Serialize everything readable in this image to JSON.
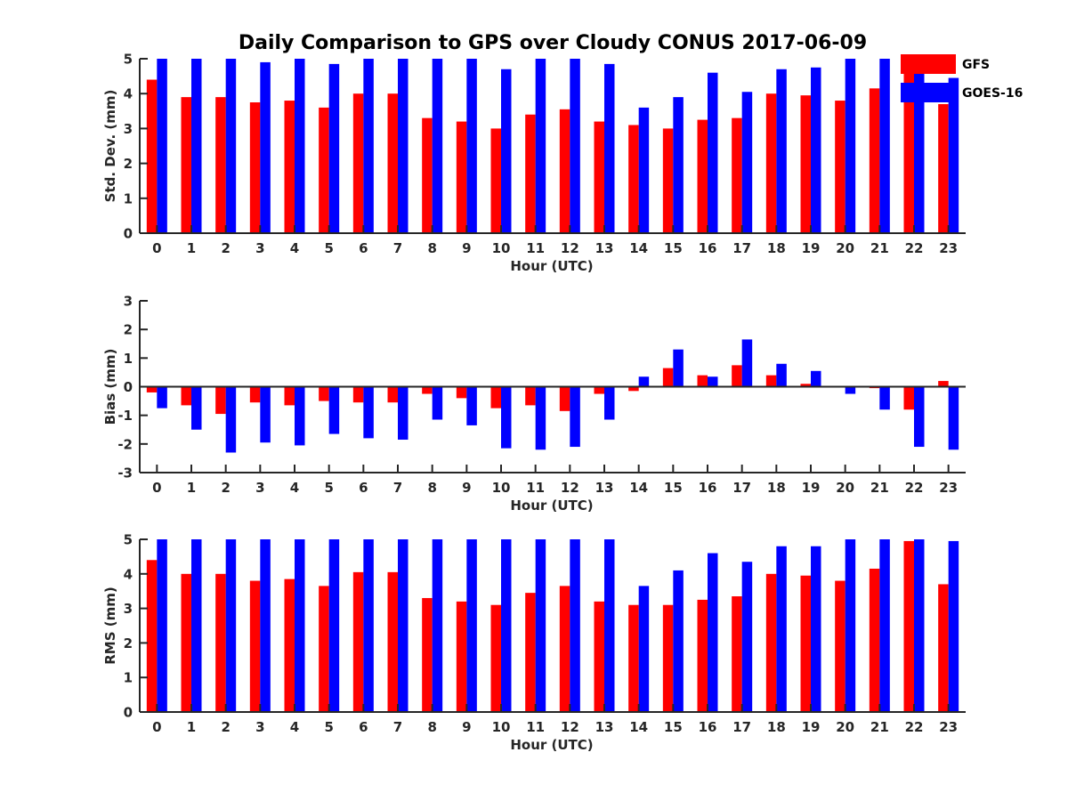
{
  "title": "Daily Comparison to GPS over Cloudy CONUS 2017-06-09",
  "legend": {
    "position": "top-right",
    "entries": [
      {
        "label": "GFS",
        "color": "#ff0000"
      },
      {
        "label": "GOES-16",
        "color": "#0000ff"
      }
    ]
  },
  "chart_data": [
    {
      "type": "bar",
      "ylabel": "Std. Dev. (mm)",
      "xlabel": "Hour (UTC)",
      "ylim": [
        0,
        5
      ],
      "yticks": [
        0,
        1,
        2,
        3,
        4,
        5
      ],
      "categories": [
        "0",
        "1",
        "2",
        "3",
        "4",
        "5",
        "6",
        "7",
        "8",
        "9",
        "10",
        "11",
        "12",
        "13",
        "14",
        "15",
        "16",
        "17",
        "18",
        "19",
        "20",
        "21",
        "22",
        "23"
      ],
      "series": [
        {
          "name": "GFS",
          "color": "#ff0000",
          "values": [
            4.4,
            3.9,
            3.9,
            3.75,
            3.8,
            3.6,
            4.0,
            4.0,
            3.3,
            3.2,
            3.0,
            3.4,
            3.55,
            3.2,
            3.1,
            3.0,
            3.25,
            3.3,
            4.0,
            3.95,
            3.8,
            4.15,
            4.9,
            3.7
          ]
        },
        {
          "name": "GOES-16",
          "color": "#0000ff",
          "values": [
            5.0,
            5.0,
            5.0,
            4.9,
            5.0,
            4.85,
            5.0,
            5.0,
            5.0,
            5.0,
            4.7,
            5.0,
            5.0,
            4.85,
            3.6,
            3.9,
            4.6,
            4.05,
            4.7,
            4.75,
            5.0,
            5.0,
            5.0,
            4.45
          ]
        }
      ]
    },
    {
      "type": "bar",
      "ylabel": "Bias (mm)",
      "xlabel": "Hour (UTC)",
      "ylim": [
        -3,
        3
      ],
      "yticks": [
        -3,
        -2,
        -1,
        0,
        1,
        2,
        3
      ],
      "baseline": 0,
      "categories": [
        "0",
        "1",
        "2",
        "3",
        "4",
        "5",
        "6",
        "7",
        "8",
        "9",
        "10",
        "11",
        "12",
        "13",
        "14",
        "15",
        "16",
        "17",
        "18",
        "19",
        "20",
        "21",
        "22",
        "23"
      ],
      "series": [
        {
          "name": "GFS",
          "color": "#ff0000",
          "values": [
            -0.2,
            -0.65,
            -0.95,
            -0.55,
            -0.65,
            -0.5,
            -0.55,
            -0.55,
            -0.25,
            -0.4,
            -0.75,
            -0.65,
            -0.85,
            -0.25,
            -0.15,
            0.65,
            0.4,
            0.75,
            0.4,
            0.1,
            0.0,
            -0.05,
            -0.8,
            0.2
          ]
        },
        {
          "name": "GOES-16",
          "color": "#0000ff",
          "values": [
            -0.75,
            -1.5,
            -2.3,
            -1.95,
            -2.05,
            -1.65,
            -1.8,
            -1.85,
            -1.15,
            -1.35,
            -2.15,
            -2.2,
            -2.1,
            -1.15,
            0.35,
            1.3,
            0.35,
            1.65,
            0.8,
            0.55,
            -0.25,
            -0.8,
            -2.1,
            -2.2
          ]
        }
      ]
    },
    {
      "type": "bar",
      "ylabel": "RMS (mm)",
      "xlabel": "Hour (UTC)",
      "ylim": [
        0,
        5
      ],
      "yticks": [
        0,
        1,
        2,
        3,
        4,
        5
      ],
      "categories": [
        "0",
        "1",
        "2",
        "3",
        "4",
        "5",
        "6",
        "7",
        "8",
        "9",
        "10",
        "11",
        "12",
        "13",
        "14",
        "15",
        "16",
        "17",
        "18",
        "19",
        "20",
        "21",
        "22",
        "23"
      ],
      "series": [
        {
          "name": "GFS",
          "color": "#ff0000",
          "values": [
            4.4,
            4.0,
            4.0,
            3.8,
            3.85,
            3.65,
            4.05,
            4.05,
            3.3,
            3.2,
            3.1,
            3.45,
            3.65,
            3.2,
            3.1,
            3.1,
            3.25,
            3.35,
            4.0,
            3.95,
            3.8,
            4.15,
            4.95,
            3.7
          ]
        },
        {
          "name": "GOES-16",
          "color": "#0000ff",
          "values": [
            5.0,
            5.0,
            5.0,
            5.0,
            5.0,
            5.0,
            5.0,
            5.0,
            5.0,
            5.0,
            5.0,
            5.0,
            5.0,
            5.0,
            3.65,
            4.1,
            4.6,
            4.35,
            4.8,
            4.8,
            5.0,
            5.0,
            5.0,
            4.95
          ]
        }
      ]
    }
  ]
}
